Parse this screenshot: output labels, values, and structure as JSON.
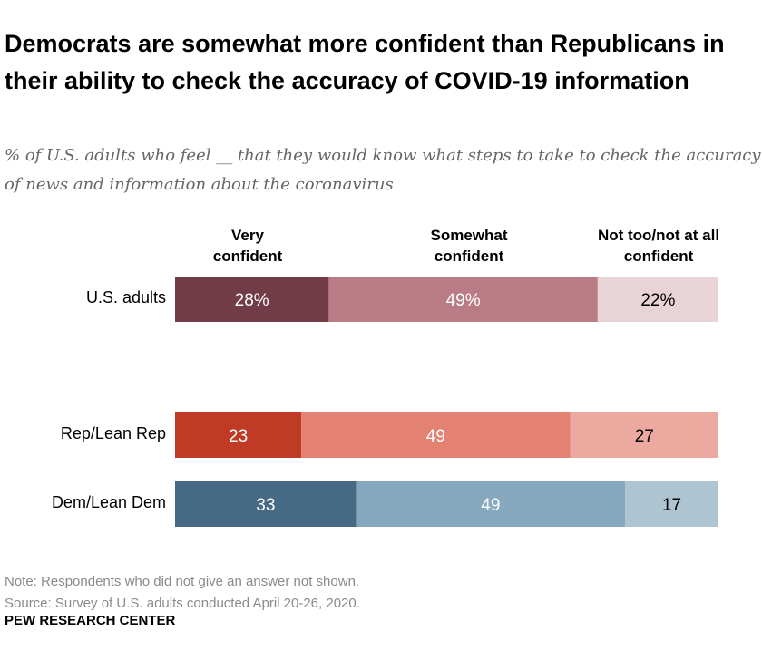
{
  "title": "Democrats are somewhat more confident than Republicans in their ability to check the accuracy of COVID-19 information",
  "subtitle": "% of U.S. adults who feel __ that they would know what steps to take to check the accuracy of news and information about the coronavirus",
  "note": "Note: Respondents who did not give an answer not shown.",
  "source": "Source: Survey of U.S. adults conducted April 20-26, 2020.",
  "brand": "PEW RESEARCH CENTER",
  "chart_data": {
    "type": "bar",
    "orientation": "horizontal-stacked",
    "series": [
      {
        "name": "Very confident",
        "values": [
          28,
          23,
          33
        ],
        "labels": [
          "28%",
          "23",
          "33"
        ]
      },
      {
        "name": "Somewhat confident",
        "values": [
          49,
          49,
          49
        ],
        "labels": [
          "49%",
          "49",
          "49"
        ]
      },
      {
        "name": "Not too/not at all confident",
        "values": [
          22,
          27,
          17
        ],
        "labels": [
          "22%",
          "27",
          "17"
        ]
      }
    ],
    "categories": [
      "U.S. adults",
      "Rep/Lean Rep",
      "Dem/Lean Dem"
    ],
    "colors": [
      [
        "#713c48",
        "#b97b85",
        "#e8d3d7"
      ],
      [
        "#c03b26",
        "#e38172",
        "#eca99f"
      ],
      [
        "#476a84",
        "#86a8bf",
        "#adc4d3"
      ]
    ],
    "label_colors": [
      "#ffffff",
      "#ffffff",
      "#000000"
    ]
  }
}
